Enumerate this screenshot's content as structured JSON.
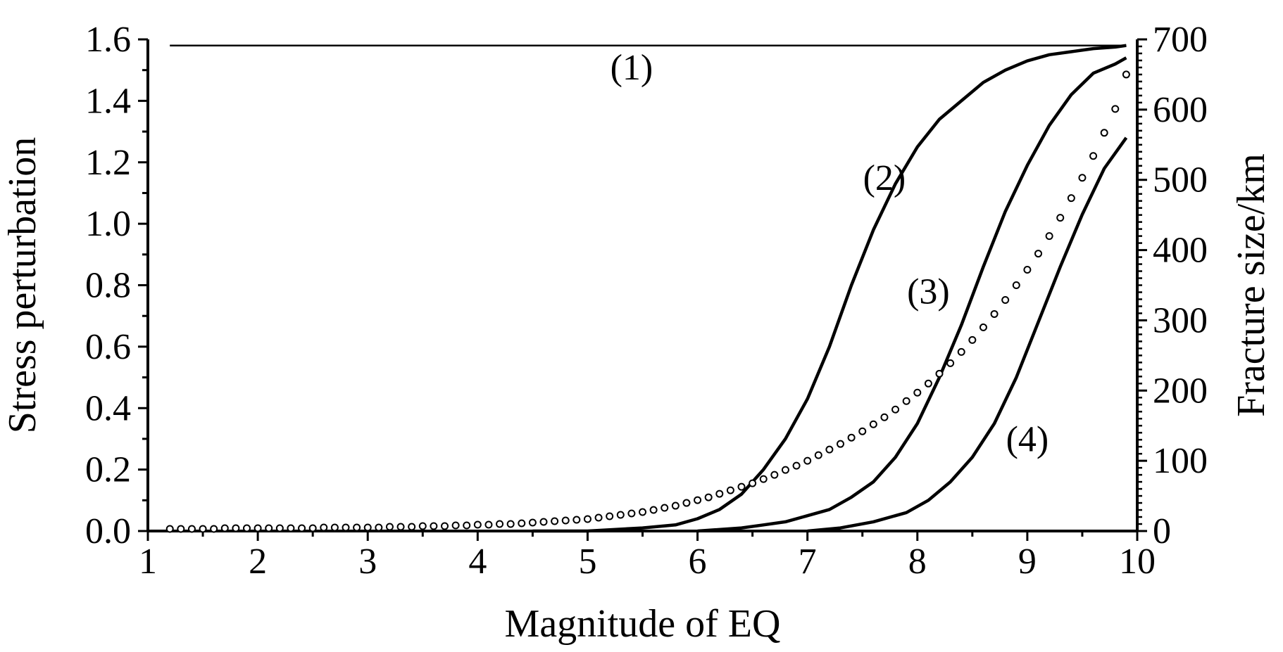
{
  "chart_data": {
    "type": "line",
    "title": "",
    "xlabel": "Magnitude of EQ",
    "ylabel": "Stress perturbation",
    "y2label": "Fracture size/km",
    "xlim": [
      1,
      10
    ],
    "ylim": [
      0,
      1.6
    ],
    "y2lim": [
      0,
      700
    ],
    "x_ticks": [
      1,
      2,
      3,
      4,
      5,
      6,
      7,
      8,
      9,
      10
    ],
    "x_tick_labels": [
      "1",
      "2",
      "3",
      "4",
      "5",
      "6",
      "7",
      "8",
      "9",
      "10"
    ],
    "y_ticks": [
      0,
      0.2,
      0.4,
      0.6,
      0.8,
      1.0,
      1.2,
      1.4,
      1.6
    ],
    "y_tick_labels": [
      "0.0",
      "0.2",
      "0.4",
      "0.6",
      "0.8",
      "1.0",
      "1.2",
      "1.4",
      "1.6"
    ],
    "y2_ticks": [
      0,
      100,
      200,
      300,
      400,
      500,
      600,
      700
    ],
    "y2_tick_labels": [
      "0",
      "100",
      "200",
      "300",
      "400",
      "500",
      "600",
      "700"
    ],
    "grid": false,
    "series": [
      {
        "name": "(1)",
        "axis": "left",
        "style": "solid",
        "x": [
          1.2,
          9.9
        ],
        "y": [
          1.58,
          1.58
        ]
      },
      {
        "name": "(2)",
        "axis": "left",
        "style": "solid",
        "x": [
          4.5,
          5.0,
          5.5,
          5.8,
          6.0,
          6.2,
          6.4,
          6.6,
          6.8,
          7.0,
          7.2,
          7.4,
          7.6,
          7.8,
          8.0,
          8.2,
          8.4,
          8.6,
          8.8,
          9.0,
          9.2,
          9.4,
          9.6,
          9.8,
          9.9
        ],
        "y": [
          0.0,
          0.0,
          0.01,
          0.02,
          0.04,
          0.07,
          0.12,
          0.2,
          0.3,
          0.43,
          0.6,
          0.8,
          0.98,
          1.13,
          1.25,
          1.34,
          1.4,
          1.46,
          1.5,
          1.53,
          1.55,
          1.56,
          1.57,
          1.575,
          1.58
        ]
      },
      {
        "name": "(3)",
        "axis": "left",
        "style": "solid",
        "x": [
          6.0,
          6.4,
          6.6,
          6.8,
          7.0,
          7.2,
          7.4,
          7.6,
          7.8,
          8.0,
          8.2,
          8.4,
          8.6,
          8.8,
          9.0,
          9.2,
          9.4,
          9.6,
          9.8,
          9.9
        ],
        "y": [
          0.0,
          0.01,
          0.02,
          0.03,
          0.05,
          0.07,
          0.11,
          0.16,
          0.24,
          0.35,
          0.5,
          0.67,
          0.86,
          1.04,
          1.19,
          1.32,
          1.42,
          1.49,
          1.52,
          1.54
        ]
      },
      {
        "name": "(4)",
        "axis": "left",
        "style": "solid",
        "x": [
          7.0,
          7.3,
          7.6,
          7.9,
          8.1,
          8.3,
          8.5,
          8.7,
          8.9,
          9.1,
          9.3,
          9.5,
          9.7,
          9.9
        ],
        "y": [
          0.0,
          0.01,
          0.03,
          0.06,
          0.1,
          0.16,
          0.24,
          0.35,
          0.5,
          0.68,
          0.86,
          1.03,
          1.18,
          1.28
        ]
      },
      {
        "name": "Fracture size",
        "axis": "right",
        "style": "markers",
        "x": [
          1.2,
          1.3,
          1.4,
          1.5,
          1.6,
          1.7,
          1.8,
          1.9,
          2.0,
          2.1,
          2.2,
          2.3,
          2.4,
          2.5,
          2.6,
          2.7,
          2.8,
          2.9,
          3.0,
          3.1,
          3.2,
          3.3,
          3.4,
          3.5,
          3.6,
          3.7,
          3.8,
          3.9,
          4.0,
          4.1,
          4.2,
          4.3,
          4.4,
          4.5,
          4.6,
          4.7,
          4.8,
          4.9,
          5.0,
          5.1,
          5.2,
          5.3,
          5.4,
          5.5,
          5.6,
          5.7,
          5.8,
          5.9,
          6.0,
          6.1,
          6.2,
          6.3,
          6.4,
          6.5,
          6.6,
          6.7,
          6.8,
          6.9,
          7.0,
          7.1,
          7.2,
          7.3,
          7.4,
          7.5,
          7.6,
          7.7,
          7.8,
          7.9,
          8.0,
          8.1,
          8.2,
          8.3,
          8.4,
          8.5,
          8.6,
          8.7,
          8.8,
          8.9,
          9.0,
          9.1,
          9.2,
          9.3,
          9.4,
          9.5,
          9.6,
          9.7,
          9.8,
          9.9
        ],
        "y": [
          3,
          3,
          3,
          3,
          3,
          4,
          4,
          4,
          4,
          4,
          4,
          4,
          4,
          4,
          5,
          5,
          5,
          5,
          5,
          5,
          6,
          6,
          6,
          7,
          7,
          7,
          8,
          8,
          9,
          9,
          10,
          10,
          11,
          12,
          13,
          14,
          15,
          16,
          17,
          19,
          21,
          23,
          25,
          27,
          30,
          33,
          36,
          40,
          44,
          48,
          53,
          58,
          63,
          68,
          74,
          80,
          87,
          93,
          100,
          108,
          116,
          124,
          133,
          142,
          152,
          162,
          173,
          185,
          197,
          210,
          224,
          239,
          255,
          272,
          290,
          309,
          329,
          350,
          372,
          395,
          420,
          446,
          474,
          503,
          534,
          567,
          601,
          650
        ]
      }
    ],
    "annotations": [
      {
        "text": "(1)",
        "x": 5.4,
        "y": 1.47
      },
      {
        "text": "(2)",
        "x": 7.7,
        "y": 1.11
      },
      {
        "text": "(3)",
        "x": 8.1,
        "y": 0.74
      },
      {
        "text": "(4)",
        "x": 9.0,
        "y": 0.26
      }
    ]
  }
}
